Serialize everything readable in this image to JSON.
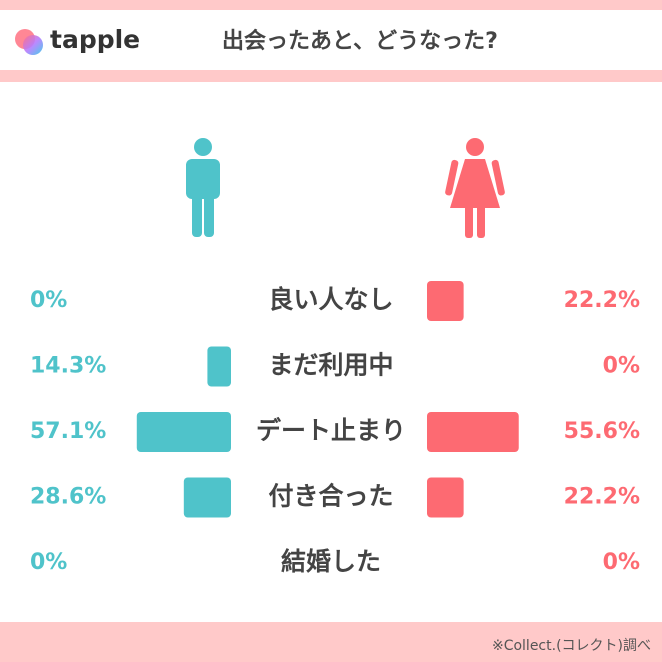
{
  "brand": "tapple",
  "chart_data": {
    "type": "butterfly",
    "title": "出会ったあと、どうなった?",
    "categories": [
      "良い人なし",
      "まだ利用中",
      "デート止まり",
      "付き合った",
      "結婚した"
    ],
    "series": [
      {
        "color": "#4fc3ca",
        "values": [
          0,
          14.3,
          57.1,
          28.6,
          0
        ],
        "value_labels": [
          "0%",
          "14.3%",
          "57.1%",
          "28.6%",
          "0%"
        ]
      },
      {
        "color": "#fd6a72",
        "values": [
          22.2,
          0,
          55.6,
          22.2,
          0
        ],
        "value_labels": [
          "22.2%",
          "0%",
          "55.6%",
          "22.2%",
          "0%"
        ]
      }
    ],
    "source": "※Collect.(コレクト)調べ"
  }
}
